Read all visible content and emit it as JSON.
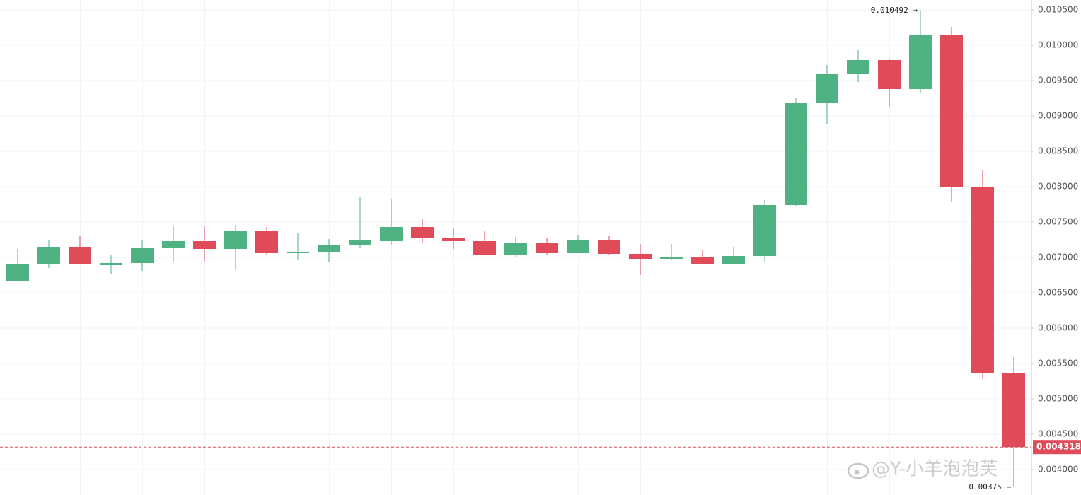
{
  "chart_data": {
    "type": "candlestick",
    "up_color": "#4eb283",
    "down_color": "#e04b5a",
    "grid": true,
    "open": [
      0.00667,
      0.0069,
      0.00715,
      0.00689,
      0.00692,
      0.00713,
      0.00723,
      0.00712,
      0.00737,
      0.00706,
      0.00708,
      0.00718,
      0.00723,
      0.00743,
      0.00728,
      0.00723,
      0.00704,
      0.00721,
      0.00706,
      0.00725,
      0.00705,
      0.00698,
      0.007,
      0.0069,
      0.00702,
      0.00774,
      0.00919,
      0.0096,
      0.00979,
      0.00938,
      0.01015,
      0.008,
      0.00537
    ],
    "high": [
      0.00712,
      0.00724,
      0.0073,
      0.00704,
      0.00725,
      0.00744,
      0.00745,
      0.00746,
      0.00743,
      0.00734,
      0.00726,
      0.00786,
      0.00783,
      0.00754,
      0.00742,
      0.00738,
      0.00729,
      0.00727,
      0.00732,
      0.0073,
      0.00719,
      0.00719,
      0.00711,
      0.00715,
      0.00781,
      0.00926,
      0.00972,
      0.00994,
      0.00981,
      0.010492,
      0.01026,
      0.00824,
      0.00559
    ],
    "low": [
      0.00667,
      0.00685,
      0.0069,
      0.00677,
      0.00681,
      0.00694,
      0.00693,
      0.00682,
      0.00703,
      0.00697,
      0.00693,
      0.00714,
      0.00717,
      0.00721,
      0.00712,
      0.00704,
      0.007,
      0.00704,
      0.00706,
      0.00703,
      0.00675,
      0.00697,
      0.0069,
      0.0069,
      0.00693,
      0.00772,
      0.00889,
      0.00948,
      0.00912,
      0.00933,
      0.00779,
      0.00528,
      0.00375
    ],
    "close": [
      0.0069,
      0.00715,
      0.0069,
      0.00692,
      0.00713,
      0.00723,
      0.00712,
      0.00737,
      0.00706,
      0.00708,
      0.00718,
      0.00724,
      0.00743,
      0.00728,
      0.00723,
      0.00704,
      0.00721,
      0.00706,
      0.00725,
      0.00705,
      0.00698,
      0.007,
      0.0069,
      0.00702,
      0.00774,
      0.00919,
      0.0096,
      0.00979,
      0.00938,
      0.01014,
      0.008,
      0.00537,
      0.004318
    ],
    "ylim": [
      0.00364,
      0.01064
    ],
    "yticks": [
      {
        "value": 0.0105,
        "label": "0.010500"
      },
      {
        "value": 0.01,
        "label": "0.010000"
      },
      {
        "value": 0.0095,
        "label": "0.009500"
      },
      {
        "value": 0.009,
        "label": "0.009000"
      },
      {
        "value": 0.0085,
        "label": "0.008500"
      },
      {
        "value": 0.008,
        "label": "0.008000"
      },
      {
        "value": 0.0075,
        "label": "0.007500"
      },
      {
        "value": 0.007,
        "label": "0.007000"
      },
      {
        "value": 0.0065,
        "label": "0.006500"
      },
      {
        "value": 0.006,
        "label": "0.006000"
      },
      {
        "value": 0.0055,
        "label": "0.005500"
      },
      {
        "value": 0.005,
        "label": "0.005000"
      },
      {
        "value": 0.0045,
        "label": "0.004500"
      },
      {
        "value": 0.004,
        "label": "0.004000"
      }
    ],
    "annotations": [
      {
        "value": 0.010492,
        "label": "0.010492 →"
      },
      {
        "value": 0.00375,
        "label": "0.00375 →"
      }
    ],
    "last_price": {
      "value": 0.004318,
      "label": "0.004318"
    },
    "watermark": "@Y-小羊泡泡芙"
  }
}
